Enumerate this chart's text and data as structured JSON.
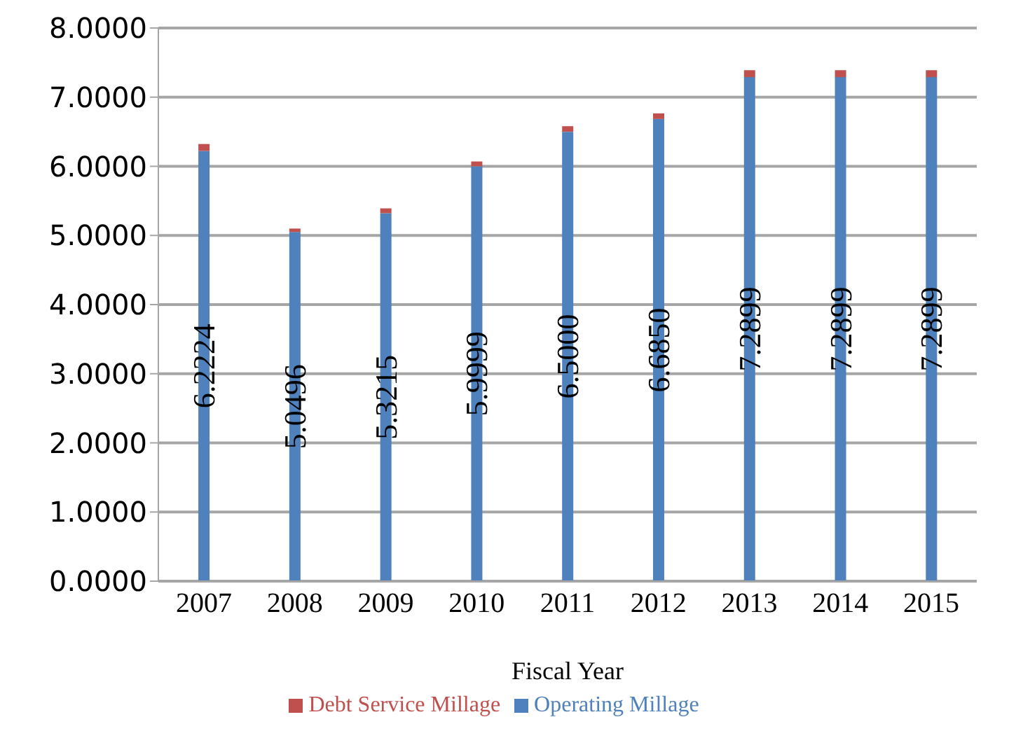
{
  "chart_data": {
    "type": "bar",
    "stacked": true,
    "xlabel": "Fiscal Year",
    "categories": [
      "2007",
      "2008",
      "2009",
      "2010",
      "2011",
      "2012",
      "2013",
      "2014",
      "2015"
    ],
    "series": [
      {
        "name": "Operating Millage",
        "color": "#4f81bd",
        "values": [
          6.2224,
          5.0496,
          5.3215,
          5.9999,
          6.5,
          6.685,
          7.2899,
          7.2899,
          7.2899
        ],
        "value_labels": [
          "6.2224",
          "5.0496",
          "5.3215",
          "5.9999",
          "6.5000",
          "6.6850",
          "7.2899",
          "7.2899",
          "7.2899"
        ]
      },
      {
        "name": "Debt Service Millage",
        "color": "#c0504d",
        "values": [
          0.1,
          0.05,
          0.07,
          0.07,
          0.08,
          0.08,
          0.1,
          0.1,
          0.1
        ]
      }
    ],
    "ylim": [
      0,
      8
    ],
    "yticks": [
      {
        "value": 0,
        "label": "0.0000"
      },
      {
        "value": 1,
        "label": "1.0000"
      },
      {
        "value": 2,
        "label": "2.0000"
      },
      {
        "value": 3,
        "label": "3.0000"
      },
      {
        "value": 4,
        "label": "4.0000"
      },
      {
        "value": 5,
        "label": "5.0000"
      },
      {
        "value": 6,
        "label": "6.0000"
      },
      {
        "value": 7,
        "label": "7.0000"
      },
      {
        "value": 8,
        "label": "8.0000"
      }
    ],
    "grid": "y",
    "legend": "bottom"
  }
}
